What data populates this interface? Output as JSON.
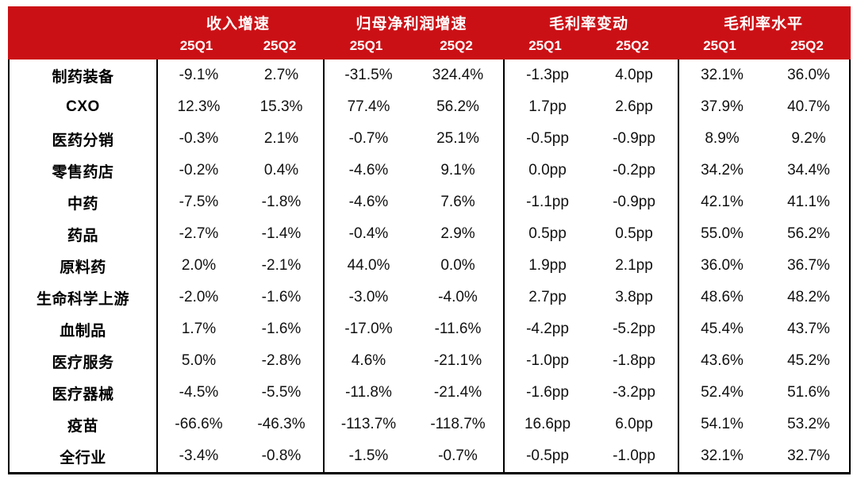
{
  "chart_data": {
    "type": "table",
    "colors": {
      "header_bg": "#CB1015",
      "header_text": "#FFFFFF",
      "body_text": "#111111",
      "border": "#000000"
    },
    "column_groups": [
      {
        "label": "收入增速",
        "columns": [
          "25Q1",
          "25Q2"
        ]
      },
      {
        "label": "归母净利润增速",
        "columns": [
          "25Q1",
          "25Q2"
        ]
      },
      {
        "label": "毛利率变动",
        "columns": [
          "25Q1",
          "25Q2"
        ]
      },
      {
        "label": "毛利率水平",
        "columns": [
          "25Q1",
          "25Q2"
        ]
      }
    ],
    "rows": [
      {
        "label": "制药装备",
        "values": [
          "-9.1%",
          "2.7%",
          "-31.5%",
          "324.4%",
          "-1.3pp",
          "4.0pp",
          "32.1%",
          "36.0%"
        ]
      },
      {
        "label": "CXO",
        "values": [
          "12.3%",
          "15.3%",
          "77.4%",
          "56.2%",
          "1.7pp",
          "2.6pp",
          "37.9%",
          "40.7%"
        ]
      },
      {
        "label": "医药分销",
        "values": [
          "-0.3%",
          "2.1%",
          "-0.7%",
          "25.1%",
          "-0.5pp",
          "-0.9pp",
          "8.9%",
          "9.2%"
        ]
      },
      {
        "label": "零售药店",
        "values": [
          "-0.2%",
          "0.4%",
          "-4.6%",
          "9.1%",
          "0.0pp",
          "-0.2pp",
          "34.2%",
          "34.4%"
        ]
      },
      {
        "label": "中药",
        "values": [
          "-7.5%",
          "-1.8%",
          "-4.6%",
          "7.6%",
          "-1.1pp",
          "-0.9pp",
          "42.1%",
          "41.1%"
        ]
      },
      {
        "label": "药品",
        "values": [
          "-2.7%",
          "-1.4%",
          "-0.4%",
          "2.9%",
          "0.5pp",
          "0.5pp",
          "55.0%",
          "56.2%"
        ]
      },
      {
        "label": "原料药",
        "values": [
          "2.0%",
          "-2.1%",
          "44.0%",
          "0.0%",
          "1.9pp",
          "2.1pp",
          "36.0%",
          "36.7%"
        ]
      },
      {
        "label": "生命科学上游",
        "values": [
          "-2.0%",
          "-1.6%",
          "-3.0%",
          "-4.0%",
          "2.7pp",
          "3.8pp",
          "48.6%",
          "48.2%"
        ]
      },
      {
        "label": "血制品",
        "values": [
          "1.7%",
          "-1.6%",
          "-17.0%",
          "-11.6%",
          "-4.2pp",
          "-5.2pp",
          "45.4%",
          "43.7%"
        ]
      },
      {
        "label": "医疗服务",
        "values": [
          "5.0%",
          "-2.8%",
          "4.6%",
          "-21.1%",
          "-1.0pp",
          "-1.8pp",
          "43.6%",
          "45.2%"
        ]
      },
      {
        "label": "医疗器械",
        "values": [
          "-4.5%",
          "-5.5%",
          "-11.8%",
          "-21.4%",
          "-1.6pp",
          "-3.2pp",
          "52.4%",
          "51.6%"
        ]
      },
      {
        "label": "疫苗",
        "values": [
          "-66.6%",
          "-46.3%",
          "-113.7%",
          "-118.7%",
          "16.6pp",
          "6.0pp",
          "54.1%",
          "53.2%"
        ]
      },
      {
        "label": "全行业",
        "values": [
          "-3.4%",
          "-0.8%",
          "-1.5%",
          "-0.7%",
          "-0.5pp",
          "-1.0pp",
          "32.1%",
          "32.7%"
        ]
      }
    ]
  }
}
